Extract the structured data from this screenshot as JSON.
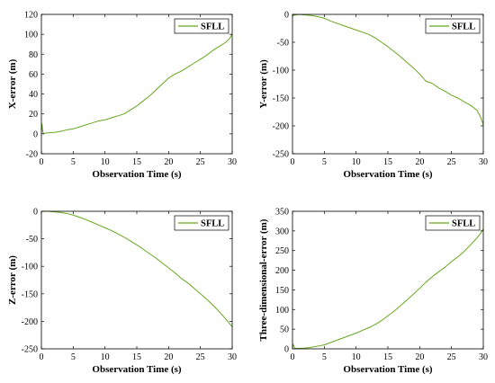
{
  "figure": {
    "color_series": "#66a61e"
  },
  "chart_data": [
    {
      "type": "line",
      "xlabel": "Observation Time (s)",
      "ylabel": "X-error (m)",
      "xlim": [
        0,
        30
      ],
      "ylim": [
        -20,
        120
      ],
      "xticks": [
        0,
        5,
        10,
        15,
        20,
        25,
        30
      ],
      "yticks": [
        -20,
        0,
        20,
        40,
        60,
        80,
        100,
        120
      ],
      "legend": "top-right",
      "series": [
        {
          "name": "SFLL",
          "x": [
            0,
            0.1,
            0.2,
            0.3,
            0.5,
            1,
            2,
            3,
            4,
            5,
            6,
            7,
            8,
            9,
            10,
            11,
            12,
            13,
            14,
            15,
            16,
            17,
            18,
            19,
            20,
            21,
            22,
            23,
            24,
            25,
            26,
            27,
            28,
            29,
            29.5,
            30
          ],
          "y": [
            2,
            10,
            3,
            0,
            0.5,
            1,
            1.5,
            2.5,
            4,
            5,
            7,
            9,
            11,
            13,
            14,
            16,
            18,
            20,
            24,
            28,
            33,
            38,
            44,
            50,
            56,
            60,
            63,
            67,
            71,
            75,
            79,
            84,
            88,
            92,
            95,
            100
          ]
        }
      ]
    },
    {
      "type": "line",
      "xlabel": "Observation Time (s)",
      "ylabel": "Y-error (m)",
      "xlim": [
        0,
        30
      ],
      "ylim": [
        -250,
        0
      ],
      "xticks": [
        0,
        5,
        10,
        15,
        20,
        25,
        30
      ],
      "yticks": [
        -250,
        -200,
        -150,
        -100,
        -50,
        0
      ],
      "legend": "top-right",
      "series": [
        {
          "name": "SFLL",
          "x": [
            0,
            1,
            2,
            3,
            4,
            5,
            6,
            7,
            8,
            9,
            10,
            11,
            12,
            13,
            14,
            15,
            16,
            17,
            18,
            19,
            20,
            21,
            22,
            23,
            24,
            25,
            26,
            27,
            28,
            29,
            29.5,
            30
          ],
          "y": [
            -2,
            0,
            -1,
            -2,
            -4,
            -7,
            -12,
            -16,
            -20,
            -24,
            -28,
            -32,
            -36,
            -42,
            -50,
            -58,
            -67,
            -76,
            -86,
            -96,
            -107,
            -120,
            -124,
            -132,
            -138,
            -145,
            -150,
            -157,
            -163,
            -172,
            -182,
            -198
          ]
        }
      ]
    },
    {
      "type": "line",
      "xlabel": "Observation Time (s)",
      "ylabel": "Z-error (m)",
      "xlim": [
        0,
        30
      ],
      "ylim": [
        -250,
        0
      ],
      "xticks": [
        0,
        5,
        10,
        15,
        20,
        25,
        30
      ],
      "yticks": [
        -250,
        -200,
        -150,
        -100,
        -50,
        0
      ],
      "legend": "top-right",
      "series": [
        {
          "name": "SFLL",
          "x": [
            0,
            1,
            2,
            3,
            4,
            5,
            6,
            7,
            8,
            9,
            10,
            11,
            12,
            13,
            14,
            15,
            16,
            17,
            18,
            19,
            20,
            21,
            22,
            23,
            24,
            25,
            26,
            27,
            28,
            29,
            29.5,
            30
          ],
          "y": [
            0,
            0,
            -1,
            -2,
            -4,
            -7,
            -11,
            -15,
            -20,
            -25,
            -30,
            -35,
            -41,
            -47,
            -54,
            -61,
            -69,
            -77,
            -85,
            -94,
            -103,
            -112,
            -122,
            -130,
            -140,
            -150,
            -160,
            -171,
            -183,
            -196,
            -203,
            -210
          ]
        }
      ]
    },
    {
      "type": "line",
      "xlabel": "Observation Time (s)",
      "ylabel": "Three-dimensional-error (m)",
      "xlim": [
        0,
        30
      ],
      "ylim": [
        0,
        350
      ],
      "xticks": [
        0,
        5,
        10,
        15,
        20,
        25,
        30
      ],
      "yticks": [
        0,
        50,
        100,
        150,
        200,
        250,
        300,
        350
      ],
      "legend": "top-right",
      "series": [
        {
          "name": "SFLL",
          "x": [
            0,
            0.1,
            0.3,
            0.5,
            1,
            2,
            3,
            4,
            5,
            6,
            7,
            8,
            9,
            10,
            11,
            12,
            13,
            14,
            15,
            16,
            17,
            18,
            19,
            20,
            21,
            22,
            23,
            24,
            25,
            26,
            27,
            28,
            29,
            29.5,
            30
          ],
          "y": [
            5,
            12,
            3,
            1,
            1,
            2,
            4,
            7,
            10,
            16,
            22,
            28,
            34,
            40,
            47,
            54,
            62,
            72,
            84,
            96,
            110,
            124,
            139,
            154,
            170,
            184,
            196,
            208,
            222,
            234,
            248,
            265,
            282,
            292,
            305
          ]
        }
      ]
    }
  ]
}
